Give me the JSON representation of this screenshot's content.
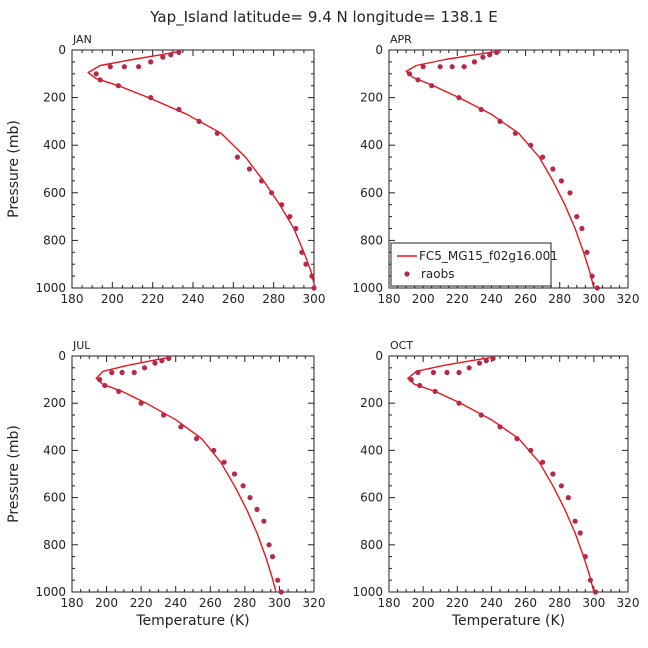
{
  "title": "Yap_Island  latitude= 9.4 N longitude= 138.1 E",
  "colors": {
    "model": "#e8161b",
    "raobs": "#b5294a"
  },
  "legend": {
    "model_label": "FC5_MG15_f02g16.001",
    "obs_label": "raobs"
  },
  "chart_data": [
    {
      "type": "line",
      "panel": "JAN",
      "label": "JAN",
      "xlabel": "",
      "ylabel": "Pressure (mb)",
      "xlim": [
        180,
        300
      ],
      "ylim": [
        1000,
        0
      ],
      "y_inverted": true,
      "xticks": [
        180,
        200,
        220,
        240,
        260,
        280,
        300
      ],
      "yticks": [
        0,
        200,
        400,
        600,
        800,
        1000
      ],
      "model": {
        "temperature": [
          234.0,
          224.0,
          210.0,
          194.0,
          188.0,
          192.0,
          203.0,
          218.0,
          237.0,
          254.0,
          266.0,
          275.0,
          283.0,
          290.0,
          295.0,
          298.5,
          300.5
        ],
        "pressure": [
          5,
          20,
          40,
          65,
          95,
          120,
          150,
          200,
          270,
          350,
          450,
          550,
          650,
          750,
          850,
          930,
          1000
        ]
      },
      "raobs": {
        "temperature": [
          233,
          229,
          225,
          219,
          213,
          206,
          199,
          192,
          194,
          203,
          219,
          233,
          243,
          252,
          262,
          268,
          274,
          279,
          284,
          288,
          291,
          294,
          296,
          299,
          300
        ],
        "pressure": [
          10,
          20,
          30,
          50,
          70,
          70,
          70,
          100,
          125,
          150,
          200,
          250,
          300,
          350,
          450,
          500,
          550,
          600,
          650,
          700,
          750,
          850,
          900,
          950,
          1000
        ]
      },
      "legend": "none"
    },
    {
      "type": "line",
      "panel": "APR",
      "label": "APR",
      "xlabel": "",
      "ylabel": "",
      "xlim": [
        180,
        320
      ],
      "ylim": [
        1000,
        0
      ],
      "y_inverted": true,
      "xticks": [
        180,
        200,
        220,
        240,
        260,
        280,
        300,
        320
      ],
      "yticks": [
        0,
        200,
        400,
        600,
        800,
        1000
      ],
      "model": {
        "temperature": [
          244.0,
          230.0,
          213.0,
          196.0,
          190.0,
          194.0,
          206.0,
          221.0,
          240.0,
          256.0,
          268.0,
          276.0,
          283.0,
          289.0,
          294.0,
          297.5,
          300.0
        ],
        "pressure": [
          5,
          20,
          40,
          65,
          90,
          115,
          150,
          200,
          270,
          350,
          450,
          550,
          650,
          750,
          850,
          930,
          1000
        ]
      },
      "raobs": {
        "temperature": [
          243,
          239,
          235,
          230,
          224,
          217,
          210,
          200,
          192,
          197,
          205,
          221,
          234,
          245,
          254,
          263,
          270,
          276,
          281,
          286,
          290,
          293,
          296,
          299,
          302
        ],
        "pressure": [
          10,
          20,
          30,
          50,
          70,
          70,
          70,
          70,
          100,
          125,
          150,
          200,
          250,
          300,
          350,
          400,
          450,
          500,
          550,
          600,
          700,
          750,
          850,
          950,
          1000
        ]
      },
      "legend": "bottom-left"
    },
    {
      "type": "line",
      "panel": "JUL",
      "label": "JUL",
      "xlabel": "Temperature (K)",
      "ylabel": "Pressure (mb)",
      "xlim": [
        180,
        320
      ],
      "ylim": [
        1000,
        0
      ],
      "y_inverted": true,
      "xticks": [
        180,
        200,
        220,
        240,
        260,
        280,
        300,
        320
      ],
      "yticks": [
        0,
        200,
        400,
        600,
        800,
        1000
      ],
      "model": {
        "temperature": [
          237.0,
          226.0,
          212.0,
          198.0,
          194.0,
          198.0,
          209.0,
          223.0,
          240.0,
          255.0,
          266.0,
          274.0,
          281.0,
          287.0,
          292.0,
          295.5,
          298.0
        ],
        "pressure": [
          5,
          20,
          40,
          65,
          95,
          120,
          150,
          200,
          270,
          350,
          450,
          550,
          650,
          750,
          850,
          930,
          1000
        ]
      },
      "raobs": {
        "temperature": [
          236,
          232,
          228,
          222,
          216,
          209,
          203,
          196,
          199,
          207,
          220,
          233,
          243,
          252,
          262,
          268,
          274,
          279,
          283,
          287,
          291,
          294,
          296,
          299,
          301
        ],
        "pressure": [
          10,
          20,
          30,
          50,
          70,
          70,
          70,
          100,
          125,
          150,
          200,
          250,
          300,
          350,
          400,
          450,
          500,
          550,
          600,
          650,
          700,
          800,
          850,
          950,
          1000
        ]
      },
      "legend": "none"
    },
    {
      "type": "line",
      "panel": "OCT",
      "label": "OCT",
      "xlabel": "Temperature (K)",
      "ylabel": "",
      "xlim": [
        180,
        320
      ],
      "ylim": [
        1000,
        0
      ],
      "y_inverted": true,
      "xticks": [
        180,
        200,
        220,
        240,
        260,
        280,
        300,
        320
      ],
      "yticks": [
        0,
        200,
        400,
        600,
        800,
        1000
      ],
      "model": {
        "temperature": [
          241.0,
          228.0,
          212.0,
          196.0,
          191.0,
          195.0,
          207.0,
          222.0,
          240.0,
          256.0,
          268.0,
          276.0,
          283.0,
          289.0,
          294.0,
          297.5,
          300.0
        ],
        "pressure": [
          5,
          20,
          40,
          65,
          95,
          120,
          150,
          200,
          270,
          350,
          450,
          550,
          650,
          750,
          850,
          930,
          1000
        ]
      },
      "raobs": {
        "temperature": [
          241,
          237,
          233,
          227,
          221,
          214,
          206,
          197,
          193,
          198,
          207,
          221,
          234,
          245,
          255,
          263,
          270,
          276,
          281,
          285,
          289,
          292,
          295,
          298,
          301
        ],
        "pressure": [
          10,
          20,
          30,
          50,
          70,
          70,
          70,
          70,
          100,
          125,
          150,
          200,
          250,
          300,
          350,
          400,
          450,
          500,
          550,
          600,
          700,
          750,
          850,
          950,
          1000
        ]
      },
      "legend": "none"
    }
  ]
}
